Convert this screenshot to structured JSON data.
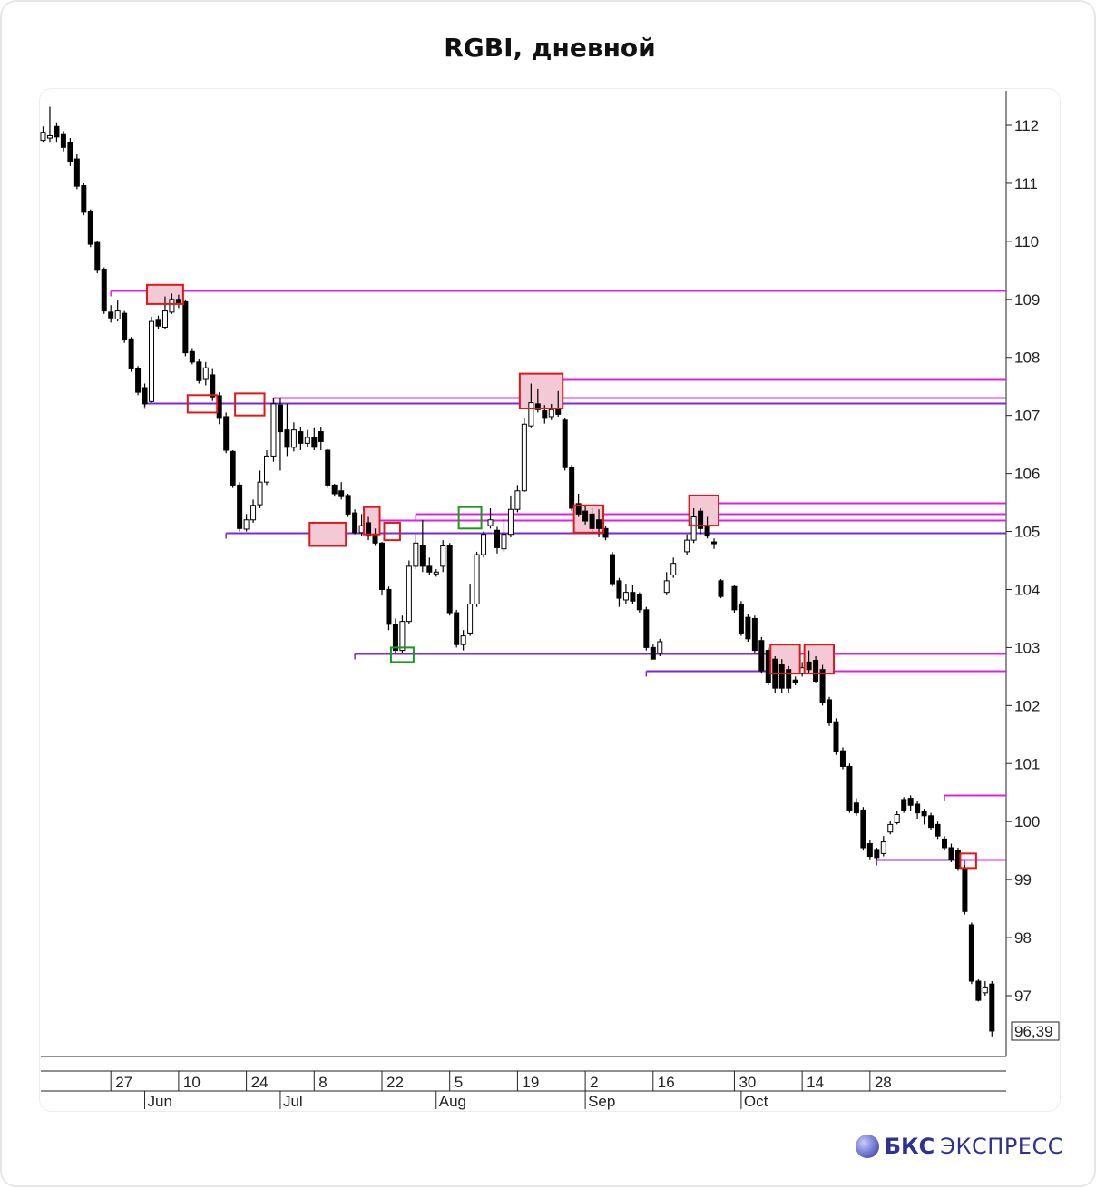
{
  "page": {
    "title": "RGBI, дневной"
  },
  "brand": {
    "name": "БКС",
    "sub": "ЭКСПРЕСС",
    "logo_icon": "bks-sphere-logo-icon"
  },
  "chart_data": {
    "type": "candlestick",
    "title": "RGBI, дневной",
    "ylim": [
      95.8,
      112.6
    ],
    "y_ticks": [
      112,
      111,
      110,
      109,
      108,
      107,
      106,
      105,
      104,
      103,
      102,
      101,
      100,
      99,
      98,
      97
    ],
    "y_tick_labels": [
      "112",
      "111",
      "110",
      "109",
      "108",
      "107",
      "106",
      "105",
      "104",
      "103",
      "102",
      "101",
      "100",
      "99",
      "98",
      "97"
    ],
    "last_price": 96.39,
    "last_price_label": "96,39",
    "x_tick_labels": [
      {
        "label": "27",
        "day": "2024-05-27"
      },
      {
        "label": "10",
        "day": "2024-06-10"
      },
      {
        "label": "24",
        "day": "2024-06-24"
      },
      {
        "label": "8",
        "day": "2024-07-08"
      },
      {
        "label": "22",
        "day": "2024-07-22"
      },
      {
        "label": "5",
        "day": "2024-08-05"
      },
      {
        "label": "19",
        "day": "2024-08-19"
      },
      {
        "label": "2",
        "day": "2024-09-02"
      },
      {
        "label": "16",
        "day": "2024-09-16"
      },
      {
        "label": "30",
        "day": "2024-09-30"
      },
      {
        "label": "14",
        "day": "2024-10-14"
      },
      {
        "label": "28",
        "day": "2024-10-28"
      }
    ],
    "month_labels": [
      {
        "label": "Jun",
        "day": "2024-06-03"
      },
      {
        "label": "Jul",
        "day": "2024-07-01"
      },
      {
        "label": "Aug",
        "day": "2024-08-01"
      },
      {
        "label": "Sep",
        "day": "2024-09-02"
      },
      {
        "label": "Oct",
        "day": "2024-10-01"
      }
    ],
    "colors": {
      "up": "#ffffff",
      "down": "#000000",
      "resistance": "#e020e0",
      "support": "#7a28d8",
      "box_red": "#e01818",
      "box_fill": "#f4c9d6",
      "box_green": "#1a9a1a"
    },
    "candles": [
      [
        111.74,
        111.88,
        111.98,
        111.7
      ],
      [
        111.78,
        111.82,
        112.32,
        111.7
      ],
      [
        111.98,
        111.8,
        112.05,
        111.7
      ],
      [
        111.84,
        111.62,
        111.9,
        111.55
      ],
      [
        111.7,
        111.38,
        111.78,
        111.3
      ],
      [
        111.42,
        110.95,
        111.5,
        110.9
      ],
      [
        110.96,
        110.5,
        111.0,
        110.45
      ],
      [
        110.52,
        109.95,
        110.55,
        109.9
      ],
      [
        109.98,
        109.5,
        110.0,
        109.45
      ],
      [
        109.52,
        108.8,
        109.55,
        108.75
      ],
      [
        108.78,
        108.68,
        108.9,
        108.6
      ],
      [
        108.66,
        108.8,
        108.98,
        108.62
      ],
      [
        108.76,
        108.3,
        108.8,
        108.25
      ],
      [
        108.32,
        107.8,
        108.35,
        107.75
      ],
      [
        107.8,
        107.4,
        107.85,
        107.35
      ],
      [
        107.48,
        107.2,
        107.55,
        107.16
      ],
      [
        107.24,
        108.62,
        108.7,
        107.22
      ],
      [
        108.64,
        108.54,
        108.72,
        108.48
      ],
      [
        108.52,
        108.8,
        109.05,
        108.48
      ],
      [
        108.78,
        109.0,
        109.1,
        108.75
      ],
      [
        109.0,
        108.92,
        109.08,
        108.85
      ],
      [
        108.96,
        108.08,
        109.0,
        108.02
      ],
      [
        108.1,
        107.92,
        108.16,
        107.88
      ],
      [
        107.92,
        107.6,
        107.98,
        107.55
      ],
      [
        107.62,
        107.82,
        107.92,
        107.52
      ],
      [
        107.7,
        107.32,
        107.8,
        107.25
      ],
      [
        107.34,
        106.95,
        107.4,
        106.85
      ],
      [
        106.98,
        106.4,
        107.05,
        106.35
      ],
      [
        106.38,
        105.8,
        106.4,
        105.75
      ],
      [
        105.8,
        105.05,
        105.85,
        105.0
      ],
      [
        105.04,
        105.2,
        105.3,
        105.0
      ],
      [
        105.2,
        105.45,
        105.55,
        105.15
      ],
      [
        105.46,
        105.85,
        106.05,
        105.4
      ],
      [
        105.85,
        106.3,
        106.4,
        105.8
      ],
      [
        106.3,
        107.2,
        107.3,
        106.2
      ],
      [
        107.18,
        106.72,
        107.3,
        106.05
      ],
      [
        106.75,
        106.45,
        107.2,
        106.3
      ],
      [
        106.45,
        106.75,
        106.88,
        106.38
      ],
      [
        106.72,
        106.52,
        106.8,
        106.4
      ],
      [
        106.52,
        106.62,
        106.75,
        106.45
      ],
      [
        106.62,
        106.45,
        106.78,
        106.4
      ],
      [
        106.72,
        106.55,
        106.8,
        106.4
      ],
      [
        106.4,
        105.8,
        106.42,
        105.75
      ],
      [
        105.8,
        105.65,
        105.82,
        105.6
      ],
      [
        105.7,
        105.6,
        105.85,
        105.55
      ],
      [
        105.62,
        105.3,
        105.65,
        105.25
      ],
      [
        105.32,
        104.98,
        105.38,
        104.95
      ],
      [
        104.98,
        105.1,
        105.3,
        104.92
      ],
      [
        105.15,
        104.92,
        105.25,
        104.85
      ],
      [
        104.95,
        104.8,
        105.05,
        104.75
      ],
      [
        104.8,
        104.0,
        104.82,
        103.9
      ],
      [
        104.0,
        103.4,
        104.05,
        103.3
      ],
      [
        103.4,
        102.95,
        103.5,
        102.9
      ],
      [
        102.95,
        103.45,
        103.55,
        102.9
      ],
      [
        103.45,
        104.4,
        104.5,
        103.4
      ],
      [
        104.4,
        104.8,
        104.95,
        104.35
      ],
      [
        104.75,
        104.4,
        105.2,
        104.3
      ],
      [
        104.4,
        104.3,
        104.55,
        104.25
      ],
      [
        104.28,
        104.3,
        104.35,
        104.22
      ],
      [
        104.4,
        104.75,
        104.85,
        104.3
      ],
      [
        104.75,
        103.6,
        104.8,
        103.55
      ],
      [
        103.6,
        103.05,
        103.65,
        103.0
      ],
      [
        103.05,
        103.2,
        103.3,
        102.95
      ],
      [
        103.25,
        103.75,
        104.1,
        103.2
      ],
      [
        103.75,
        104.6,
        104.65,
        103.7
      ],
      [
        104.6,
        104.95,
        105.0,
        104.55
      ],
      [
        105.1,
        105.2,
        105.4,
        105.05
      ],
      [
        105.02,
        104.72,
        105.08,
        104.62
      ],
      [
        104.7,
        104.95,
        105.22,
        104.65
      ],
      [
        104.95,
        105.38,
        105.62,
        104.9
      ],
      [
        105.38,
        105.7,
        105.8,
        105.33
      ],
      [
        105.7,
        106.85,
        106.95,
        105.68
      ],
      [
        106.82,
        107.22,
        107.55,
        106.78
      ],
      [
        107.2,
        107.1,
        107.45,
        107.05
      ],
      [
        107.08,
        106.95,
        107.18,
        106.86
      ],
      [
        106.98,
        107.1,
        107.2,
        106.92
      ],
      [
        107.1,
        107.02,
        107.42,
        106.98
      ],
      [
        106.92,
        106.1,
        106.96,
        106.05
      ],
      [
        106.1,
        105.4,
        106.15,
        105.35
      ],
      [
        105.48,
        105.3,
        105.65,
        105.25
      ],
      [
        105.35,
        105.18,
        105.45,
        105.12
      ],
      [
        105.3,
        105.05,
        105.4,
        104.95
      ],
      [
        105.2,
        105.05,
        105.38,
        104.9
      ],
      [
        105.05,
        104.9,
        105.1,
        104.85
      ],
      [
        104.6,
        104.1,
        104.65,
        104.05
      ],
      [
        104.15,
        103.85,
        104.2,
        103.7
      ],
      [
        103.82,
        103.95,
        104.1,
        103.75
      ],
      [
        103.95,
        103.8,
        104.08,
        103.75
      ],
      [
        103.92,
        103.65,
        103.95,
        103.6
      ],
      [
        103.65,
        103.0,
        103.7,
        102.95
      ],
      [
        103.0,
        102.8,
        103.05,
        102.8
      ],
      [
        102.9,
        103.1,
        103.15,
        102.85
      ],
      [
        103.95,
        104.15,
        104.3,
        103.9
      ],
      [
        104.25,
        104.45,
        104.55,
        104.2
      ],
      [
        104.65,
        104.85,
        104.95,
        104.6
      ],
      [
        104.85,
        105.25,
        105.4,
        104.8
      ],
      [
        105.35,
        105.05,
        105.4,
        104.95
      ],
      [
        105.1,
        104.92,
        105.25,
        104.88
      ],
      [
        104.82,
        104.8,
        104.88,
        104.7
      ],
      [
        104.15,
        103.88,
        104.18,
        103.85
      ],
      [
        104.05,
        103.65,
        104.08,
        103.6
      ],
      [
        103.75,
        103.25,
        103.8,
        103.2
      ],
      [
        103.52,
        103.15,
        103.58,
        103.1
      ],
      [
        103.5,
        102.95,
        103.55,
        102.9
      ],
      [
        103.12,
        102.6,
        103.18,
        102.55
      ],
      [
        102.95,
        102.4,
        103.0,
        102.35
      ],
      [
        102.8,
        102.3,
        102.85,
        102.22
      ],
      [
        102.7,
        102.3,
        102.8,
        102.22
      ],
      [
        102.62,
        102.3,
        102.68,
        102.22
      ],
      [
        102.44,
        102.4,
        102.5,
        102.35
      ],
      [
        102.55,
        102.65,
        102.75,
        102.5
      ],
      [
        102.75,
        102.62,
        102.95,
        102.55
      ],
      [
        102.78,
        102.42,
        102.85,
        102.4
      ],
      [
        102.62,
        102.05,
        102.7,
        102.0
      ],
      [
        102.1,
        101.7,
        102.15,
        101.65
      ],
      [
        101.72,
        101.2,
        101.78,
        101.15
      ],
      [
        101.22,
        100.95,
        101.28,
        100.9
      ],
      [
        100.95,
        100.2,
        101.0,
        100.15
      ],
      [
        100.32,
        100.15,
        100.4,
        100.1
      ],
      [
        100.2,
        99.55,
        100.25,
        99.5
      ],
      [
        99.62,
        99.4,
        99.68,
        99.35
      ],
      [
        99.52,
        99.38,
        99.55,
        99.35
      ],
      [
        99.45,
        99.65,
        99.75,
        99.4
      ],
      [
        99.82,
        99.95,
        100.02,
        99.78
      ],
      [
        99.98,
        100.12,
        100.18,
        99.95
      ],
      [
        100.38,
        100.2,
        100.42,
        100.15
      ],
      [
        100.4,
        100.28,
        100.45,
        100.18
      ],
      [
        100.3,
        100.15,
        100.35,
        100.05
      ],
      [
        100.18,
        100.1,
        100.22,
        99.95
      ],
      [
        100.1,
        99.9,
        100.15,
        99.85
      ],
      [
        99.95,
        99.75,
        100.0,
        99.7
      ],
      [
        99.7,
        99.55,
        99.75,
        99.5
      ],
      [
        99.55,
        99.35,
        99.62,
        99.3
      ],
      [
        99.5,
        99.2,
        99.55,
        99.15
      ],
      [
        99.2,
        98.45,
        99.25,
        98.4
      ],
      [
        98.22,
        97.25,
        98.26,
        97.2
      ],
      [
        97.25,
        96.92,
        97.28,
        96.9
      ],
      [
        97.05,
        97.15,
        97.25,
        97.0
      ],
      [
        97.2,
        96.39,
        97.25,
        96.3
      ]
    ],
    "gaps": [
      {
        "after_index": 93,
        "skip": 1
      },
      {
        "after_index": 99,
        "skip": 1
      }
    ],
    "levels": [
      {
        "price": 109.15,
        "from_index": 10,
        "color": "resistance"
      },
      {
        "price": 107.62,
        "from_index": 72,
        "color": "resistance"
      },
      {
        "price": 107.3,
        "from_index": 34,
        "color": "resistance"
      },
      {
        "price": 107.22,
        "from_index": 15,
        "color": "support"
      },
      {
        "price": 105.5,
        "from_index": 98,
        "color": "resistance"
      },
      {
        "price": 105.3,
        "from_index": 55,
        "color": "resistance"
      },
      {
        "price": 105.2,
        "from_index": 48,
        "color": "resistance"
      },
      {
        "price": 104.98,
        "from_index": 27,
        "color": "support"
      },
      {
        "price": 102.9,
        "from_index": 46,
        "color": "support"
      },
      {
        "price": 102.9,
        "from_index": 106,
        "color": "resistance"
      },
      {
        "price": 102.6,
        "from_index": 89,
        "color": "support"
      },
      {
        "price": 102.6,
        "from_index": 106,
        "color": "resistance"
      },
      {
        "price": 100.45,
        "from_index": 131,
        "color": "resistance"
      },
      {
        "price": 99.35,
        "from_index": 121,
        "color": "support"
      },
      {
        "price": 99.35,
        "from_index": 134,
        "color": "resistance"
      }
    ],
    "boxes": [
      {
        "i0": 16,
        "i1": 20,
        "p_low": 108.92,
        "p_high": 109.25,
        "kind": "red_filled"
      },
      {
        "i0": 22,
        "i1": 25,
        "p_low": 107.05,
        "p_high": 107.35,
        "kind": "red"
      },
      {
        "i0": 29,
        "i1": 32,
        "p_low": 107.0,
        "p_high": 107.38,
        "kind": "red"
      },
      {
        "i0": 40,
        "i1": 44,
        "p_low": 104.75,
        "p_high": 105.15,
        "kind": "red_filled"
      },
      {
        "i0": 48,
        "i1": 49,
        "p_low": 104.95,
        "p_high": 105.42,
        "kind": "red_filled"
      },
      {
        "i0": 51,
        "i1": 52,
        "p_low": 104.85,
        "p_high": 105.15,
        "kind": "red"
      },
      {
        "i0": 52,
        "i1": 54,
        "p_low": 102.75,
        "p_high": 103.0,
        "kind": "green"
      },
      {
        "i0": 62,
        "i1": 64,
        "p_low": 105.05,
        "p_high": 105.42,
        "kind": "green"
      },
      {
        "i0": 71,
        "i1": 76,
        "p_low": 107.12,
        "p_high": 107.72,
        "kind": "red_filled"
      },
      {
        "i0": 79,
        "i1": 82,
        "p_low": 104.98,
        "p_high": 105.45,
        "kind": "red_filled"
      },
      {
        "i0": 95,
        "i1": 98,
        "p_low": 105.1,
        "p_high": 105.62,
        "kind": "red_filled"
      },
      {
        "i0": 106,
        "i1": 109,
        "p_low": 102.55,
        "p_high": 103.05,
        "kind": "red_filled"
      },
      {
        "i0": 111,
        "i1": 114,
        "p_low": 102.55,
        "p_high": 103.05,
        "kind": "red_filled"
      },
      {
        "i0": 134,
        "i1": 135,
        "p_low": 99.2,
        "p_high": 99.45,
        "kind": "red"
      }
    ]
  }
}
